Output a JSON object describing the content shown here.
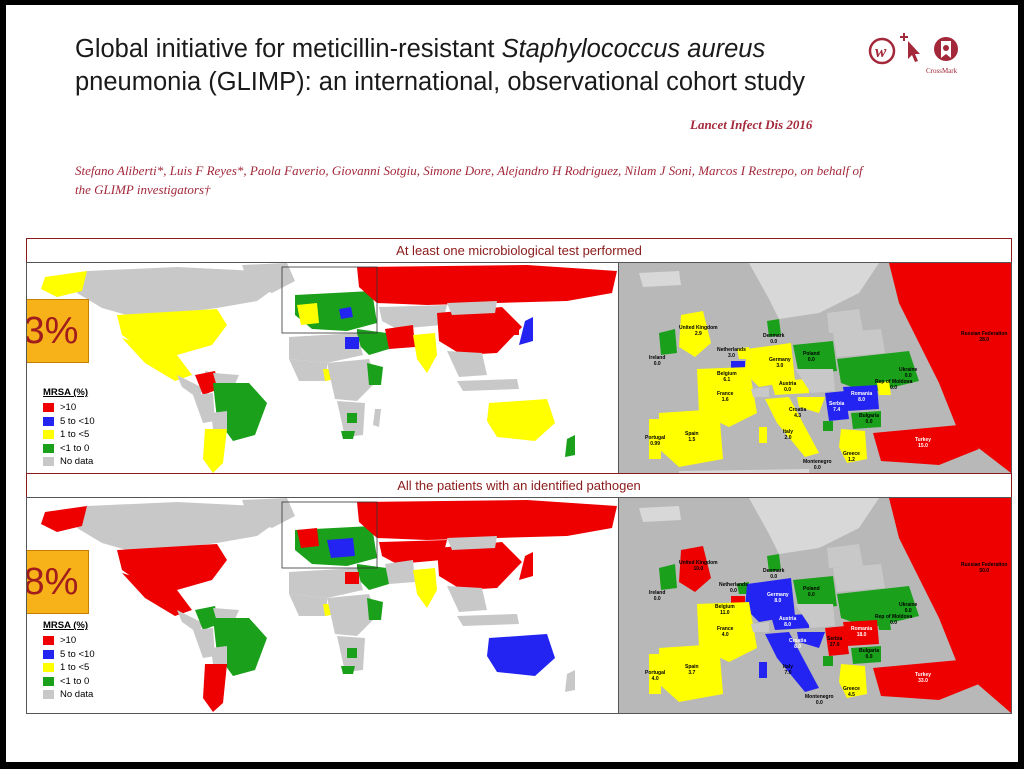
{
  "header": {
    "title_part1": "Global initiative for meticillin-resistant ",
    "title_italic": "Staphylococcus aureus",
    "title_part2": " pneumonia (GLIMP): an international, observational cohort study",
    "journal": "Lancet Infect Dis 2016",
    "authors": "Stefano Aliberti*, Luis F Reyes*, Paola Faverio, Giovanni Sotgiu, Simone Dore, Alejandro H Rodriguez, Nilam J Soni, Marcos I Restrepo, on behalf of the GLIMP investigators†",
    "crossmark_label": "CrossMark"
  },
  "colors": {
    "gt10": "#ee0000",
    "5to10": "#2424f2",
    "1to5": "#ffff00",
    "lt1": "#1aa01a",
    "nodata": "#c8c8c8",
    "sea_europe": "#b8b8b8",
    "accent": "#a3283a"
  },
  "legend": {
    "title": "MRSA (%)",
    "items": [
      {
        "label": ">10",
        "color": "#ee0000"
      },
      {
        "label": "5 to <10",
        "color": "#2424f2"
      },
      {
        "label": "1 to <5",
        "color": "#ffff00"
      },
      {
        "label": "<1 to 0",
        "color": "#1aa01a"
      },
      {
        "label": "No data",
        "color": "#c8c8c8"
      }
    ]
  },
  "panels": [
    {
      "banner": "At least one microbiological test performed",
      "prevalence": "3%",
      "europe_labels": {
        "uk": [
          "United Kingdom",
          "2.9"
        ],
        "ireland": [
          "Ireland",
          "0.0"
        ],
        "netherlands": [
          "Netherlands",
          "3.0"
        ],
        "belgium": [
          "Belgium",
          "6.1"
        ],
        "germany": [
          "Germany",
          "3.0"
        ],
        "denmark": [
          "Denmark",
          "0.0"
        ],
        "poland": [
          "Poland",
          "0.0"
        ],
        "france": [
          "France",
          "1.6"
        ],
        "austria": [
          "Austria",
          "0.0"
        ],
        "croatia": [
          "Croatia",
          "4.3"
        ],
        "serbia": [
          "Serbia",
          "7.4"
        ],
        "romania": [
          "Romania",
          "8.0"
        ],
        "moldova": [
          "Rep of Moldova",
          "0.0"
        ],
        "ukraine": [
          "Ukraine",
          "0.0"
        ],
        "bulgaria": [
          "Bulgaria",
          "0.0"
        ],
        "russia": [
          "Russian Federation",
          "28.0"
        ],
        "portugal": [
          "Portugal",
          "0.99"
        ],
        "spain": [
          "Spain",
          "1.5"
        ],
        "italy": [
          "Italy",
          "2.0"
        ],
        "montenegro": [
          "Montenegro",
          "0.0"
        ],
        "greece": [
          "Greece",
          "1.2"
        ],
        "turkey": [
          "Turkey",
          "15.0"
        ]
      }
    },
    {
      "banner": "All the patients with an identified pathogen",
      "prevalence": "8%",
      "europe_labels": {
        "uk": [
          "United Kingdom",
          "10.0"
        ],
        "ireland": [
          "Ireland",
          "0.0"
        ],
        "netherlands": [
          "Netherlands",
          "0.0"
        ],
        "belgium": [
          "Belgium",
          "11.0"
        ],
        "germany": [
          "Germany",
          "8.0"
        ],
        "denmark": [
          "Denmark",
          "0.0"
        ],
        "poland": [
          "Poland",
          "0.0"
        ],
        "france": [
          "France",
          "4.0"
        ],
        "austria": [
          "Austria",
          "8.0"
        ],
        "croatia": [
          "Croatia",
          "8.0"
        ],
        "serbia": [
          "Serbia",
          "27.0"
        ],
        "romania": [
          "Romania",
          "18.0"
        ],
        "moldova": [
          "Rep of Moldova",
          "0.0"
        ],
        "ukraine": [
          "Ukraine",
          "0.0"
        ],
        "bulgaria": [
          "Bulgaria",
          "0.0"
        ],
        "russia": [
          "Russian Federation",
          "50.0"
        ],
        "portugal": [
          "Portugal",
          "4.0"
        ],
        "spain": [
          "Spain",
          "3.7"
        ],
        "italy": [
          "Italy",
          "7.0"
        ],
        "montenegro": [
          "Montenegro",
          "0.0"
        ],
        "greece": [
          "Greece",
          "4.5"
        ],
        "turkey": [
          "Turkey",
          "33.0"
        ]
      }
    }
  ]
}
